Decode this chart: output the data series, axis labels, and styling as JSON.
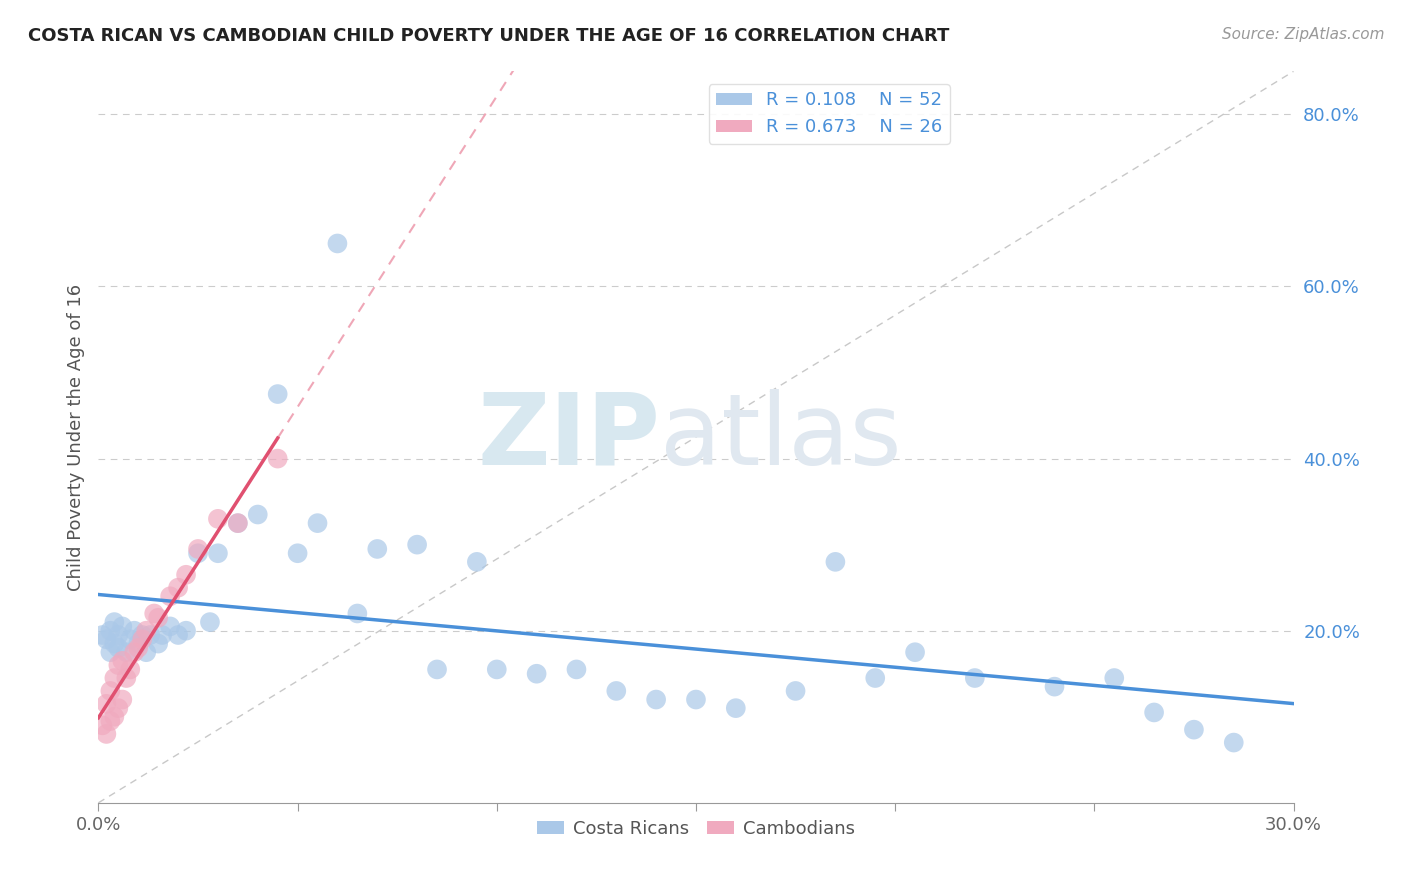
{
  "title": "COSTA RICAN VS CAMBODIAN CHILD POVERTY UNDER THE AGE OF 16 CORRELATION CHART",
  "source": "Source: ZipAtlas.com",
  "ylabel": "Child Poverty Under the Age of 16",
  "xmin": 0.0,
  "xmax": 0.3,
  "ymin": 0.0,
  "ymax": 0.85,
  "costa_rican_R": 0.108,
  "costa_rican_N": 52,
  "cambodian_R": 0.673,
  "cambodian_N": 26,
  "costa_rican_color": "#aac8e8",
  "cambodian_color": "#f0aabf",
  "costa_rican_line_color": "#4a90d9",
  "cambodian_line_color": "#e05070",
  "diagonal_color": "#c8c8c8",
  "background_color": "#ffffff",
  "watermark_zip": "ZIP",
  "watermark_atlas": "atlas",
  "cr_x": [
    0.001,
    0.002,
    0.003,
    0.003,
    0.004,
    0.004,
    0.005,
    0.005,
    0.006,
    0.007,
    0.008,
    0.009,
    0.01,
    0.011,
    0.012,
    0.013,
    0.015,
    0.016,
    0.018,
    0.02,
    0.022,
    0.025,
    0.028,
    0.03,
    0.035,
    0.04,
    0.045,
    0.05,
    0.055,
    0.06,
    0.065,
    0.07,
    0.08,
    0.085,
    0.095,
    0.1,
    0.11,
    0.12,
    0.13,
    0.14,
    0.15,
    0.16,
    0.175,
    0.185,
    0.195,
    0.205,
    0.22,
    0.24,
    0.255,
    0.265,
    0.275,
    0.285
  ],
  "cr_y": [
    0.195,
    0.19,
    0.175,
    0.2,
    0.185,
    0.21,
    0.18,
    0.195,
    0.205,
    0.175,
    0.19,
    0.2,
    0.185,
    0.195,
    0.175,
    0.195,
    0.185,
    0.195,
    0.205,
    0.195,
    0.2,
    0.29,
    0.21,
    0.29,
    0.325,
    0.335,
    0.475,
    0.29,
    0.325,
    0.65,
    0.22,
    0.295,
    0.3,
    0.155,
    0.28,
    0.155,
    0.15,
    0.155,
    0.13,
    0.12,
    0.12,
    0.11,
    0.13,
    0.28,
    0.145,
    0.175,
    0.145,
    0.135,
    0.145,
    0.105,
    0.085,
    0.07
  ],
  "cam_x": [
    0.001,
    0.002,
    0.002,
    0.003,
    0.003,
    0.004,
    0.004,
    0.005,
    0.005,
    0.006,
    0.006,
    0.007,
    0.008,
    0.009,
    0.01,
    0.011,
    0.012,
    0.014,
    0.015,
    0.018,
    0.02,
    0.022,
    0.025,
    0.03,
    0.035,
    0.045
  ],
  "cam_y": [
    0.09,
    0.08,
    0.115,
    0.095,
    0.13,
    0.1,
    0.145,
    0.11,
    0.16,
    0.12,
    0.165,
    0.145,
    0.155,
    0.175,
    0.18,
    0.19,
    0.2,
    0.22,
    0.215,
    0.24,
    0.25,
    0.265,
    0.295,
    0.33,
    0.325,
    0.4
  ]
}
